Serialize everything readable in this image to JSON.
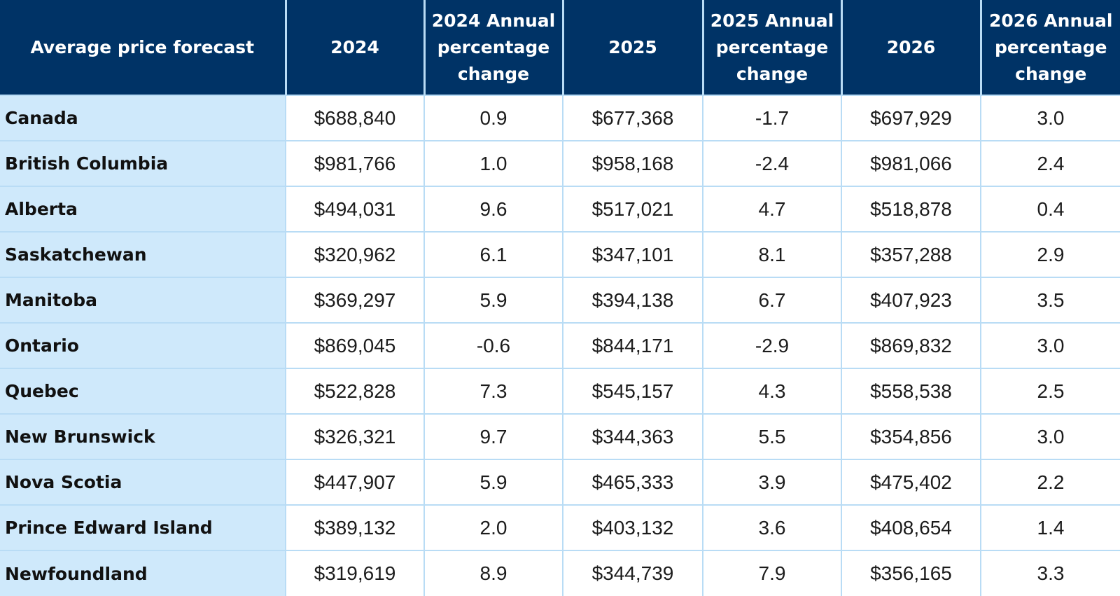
{
  "table": {
    "headers": [
      "Average price forecast",
      "2024",
      "2024 Annual\npercentage\nchange",
      "2025",
      "2025 Annual\npercentage\nchange",
      "2026",
      "2026 Annual\npercentage\nchange"
    ],
    "rows": [
      [
        "Canada",
        "$688,840",
        "0.9",
        "$677,368",
        "-1.7",
        "$697,929",
        "3.0"
      ],
      [
        "British Columbia",
        "$981,766",
        "1.0",
        "$958,168",
        "-2.4",
        "$981,066",
        "2.4"
      ],
      [
        "Alberta",
        "$494,031",
        "9.6",
        "$517,021",
        "4.7",
        "$518,878",
        "0.4"
      ],
      [
        "Saskatchewan",
        "$320,962",
        "6.1",
        "$347,101",
        "8.1",
        "$357,288",
        "2.9"
      ],
      [
        "Manitoba",
        "$369,297",
        "5.9",
        "$394,138",
        "6.7",
        "$407,923",
        "3.5"
      ],
      [
        "Ontario",
        "$869,045",
        "-0.6",
        "$844,171",
        "-2.9",
        "$869,832",
        "3.0"
      ],
      [
        "Quebec",
        "$522,828",
        "7.3",
        "$545,157",
        "4.3",
        "$558,538",
        "2.5"
      ],
      [
        "New Brunswick",
        "$326,321",
        "9.7",
        "$344,363",
        "5.5",
        "$354,856",
        "3.0"
      ],
      [
        "Nova Scotia",
        "$447,907",
        "5.9",
        "$465,333",
        "3.9",
        "$475,402",
        "2.2"
      ],
      [
        "Prince Edward Island",
        "$389,132",
        "2.0",
        "$403,132",
        "3.6",
        "$408,654",
        "1.4"
      ],
      [
        "Newfoundland",
        "$319,619",
        "8.9",
        "$344,739",
        "7.9",
        "$356,165",
        "3.3"
      ]
    ]
  },
  "colors": {
    "header_bg": "#003366",
    "header_text": "#ffffff",
    "region_bg": "#cfe9fb",
    "grid_line": "#b9dcf5"
  }
}
